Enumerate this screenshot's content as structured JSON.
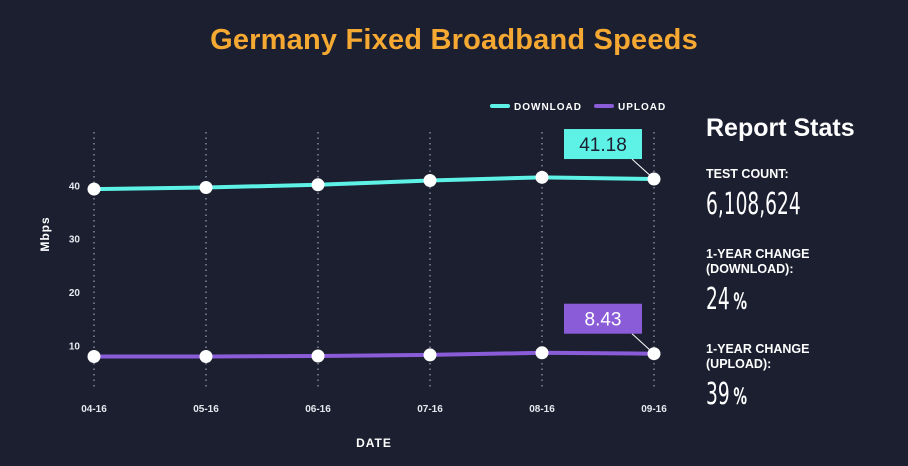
{
  "title": "Germany Fixed Broadband Speeds",
  "chart_data": {
    "type": "line",
    "categories": [
      "04-16",
      "05-16",
      "06-16",
      "07-16",
      "08-16",
      "09-16"
    ],
    "series": [
      {
        "name": "DOWNLOAD",
        "color": "#5ef2e6",
        "values": [
          39.3,
          39.6,
          40.1,
          40.9,
          41.5,
          41.18
        ]
      },
      {
        "name": "UPLOAD",
        "color": "#8a5cd8",
        "values": [
          7.9,
          7.9,
          8.0,
          8.2,
          8.6,
          8.43
        ]
      }
    ],
    "callouts": [
      {
        "series": "DOWNLOAD",
        "label": "41.18"
      },
      {
        "series": "UPLOAD",
        "label": "8.43"
      }
    ],
    "xlabel": "DATE",
    "ylabel": "Mbps",
    "yticks": [
      10,
      20,
      30,
      40
    ],
    "ylim": [
      2,
      50
    ],
    "grid": "vertical dotted",
    "legend": "top-right"
  },
  "stats": {
    "heading": "Report Stats",
    "items": [
      {
        "label": "TEST COUNT:",
        "value": "6,108,624",
        "unit": ""
      },
      {
        "label": "1-YEAR CHANGE\n(DOWNLOAD):",
        "value": "24",
        "unit": "%"
      },
      {
        "label": "1-YEAR CHANGE\n(UPLOAD):",
        "value": "39",
        "unit": "%"
      }
    ]
  }
}
